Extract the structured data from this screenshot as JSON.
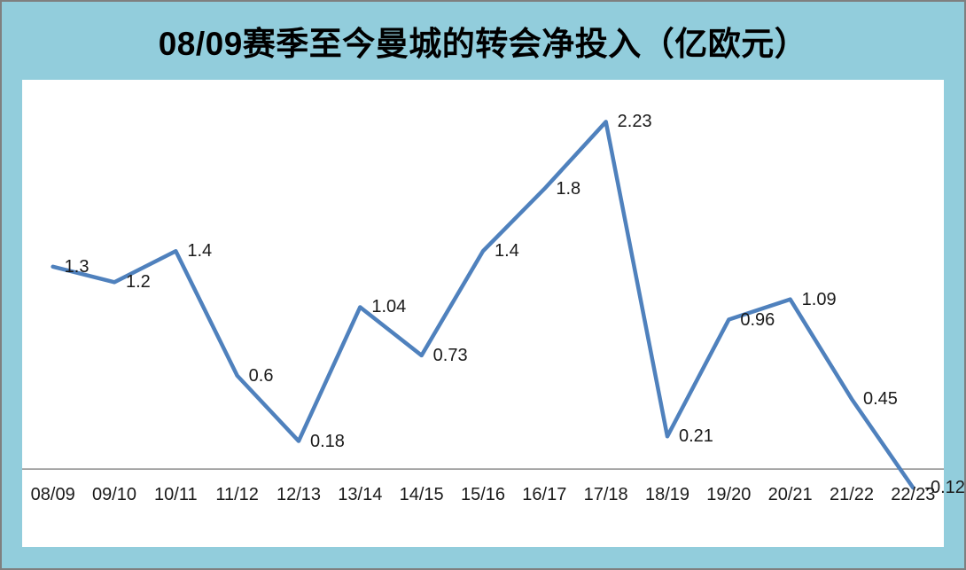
{
  "title": "08/09赛季至今曼城的转会净投入（亿欧元）",
  "colors": {
    "frame_background": "#92CDDC",
    "frame_border": "#7F7F7F",
    "plot_background": "#FFFFFF",
    "series_line": "#4F81BD",
    "axis_line": "#8C8C8C",
    "label_text": "#1A1A1A",
    "title_text": "#000000"
  },
  "chart_data": {
    "type": "line",
    "title": "08/09赛季至今曼城的转会净投入（亿欧元）",
    "categories": [
      "08/09",
      "09/10",
      "10/11",
      "11/12",
      "12/13",
      "13/14",
      "14/15",
      "15/16",
      "16/17",
      "17/18",
      "18/19",
      "19/20",
      "20/21",
      "21/22",
      "22/23"
    ],
    "values": [
      1.3,
      1.2,
      1.4,
      0.6,
      0.18,
      1.04,
      0.73,
      1.4,
      1.8,
      2.23,
      0.21,
      0.96,
      1.09,
      0.45,
      -0.12
    ],
    "labels": [
      "1.3",
      "1.2",
      "1.4",
      "0.6",
      "0.18",
      "1.04",
      "0.73",
      "1.4",
      "1.8",
      "2.23",
      "0.21",
      "0.96",
      "1.09",
      "0.45",
      "-0.12"
    ],
    "xlabel": "",
    "ylabel": "",
    "ylim": [
      -0.5,
      2.5
    ],
    "grid": false,
    "legend": "none",
    "label_placement": "right",
    "markers": "none"
  }
}
